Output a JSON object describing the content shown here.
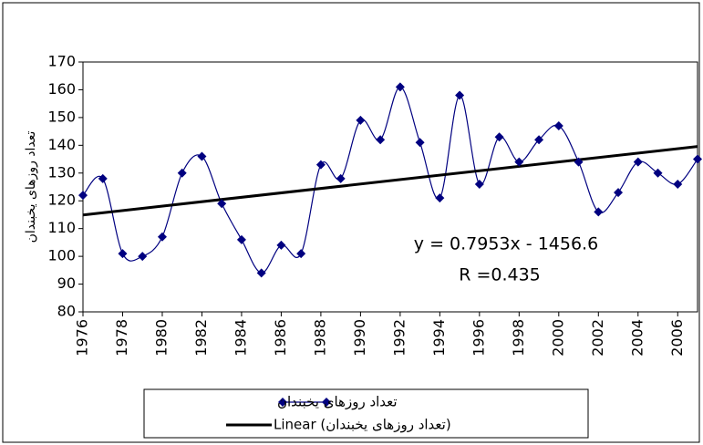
{
  "chart_data": {
    "type": "line",
    "y_label": "تعداد روزهای یخبندان",
    "x": [
      1976,
      1977,
      1978,
      1979,
      1980,
      1981,
      1982,
      1983,
      1984,
      1985,
      1986,
      1987,
      1988,
      1989,
      1990,
      1991,
      1992,
      1993,
      1994,
      1995,
      1996,
      1997,
      1998,
      1999,
      2000,
      2001,
      2002,
      2003,
      2004,
      2005,
      2006,
      2007
    ],
    "series": [
      {
        "name": "تعداد روزهای یخبندان",
        "color": "#000080",
        "values": [
          122,
          128,
          101,
          100,
          107,
          130,
          136,
          119,
          106,
          94,
          104,
          101,
          133,
          128,
          149,
          142,
          161,
          141,
          121,
          158,
          126,
          143,
          134,
          142,
          147,
          134,
          116,
          123,
          134,
          130,
          126,
          135
        ]
      }
    ],
    "trendline": {
      "name": "Linear (تعداد روزهای یخبندان)",
      "slope": 0.7953,
      "intercept": -1456.6,
      "color": "#000000"
    },
    "annotations": [
      "y = 0.7953x - 1456.6",
      "R =0.435"
    ],
    "xlim": [
      1976,
      2007
    ],
    "xticks": [
      1976,
      1978,
      1980,
      1982,
      1984,
      1986,
      1988,
      1990,
      1992,
      1994,
      1996,
      1998,
      2000,
      2002,
      2004,
      2006
    ],
    "ylim": [
      80,
      170
    ],
    "yticks": [
      80,
      90,
      100,
      110,
      120,
      130,
      140,
      150,
      160,
      170
    ],
    "legend": "bottom"
  }
}
